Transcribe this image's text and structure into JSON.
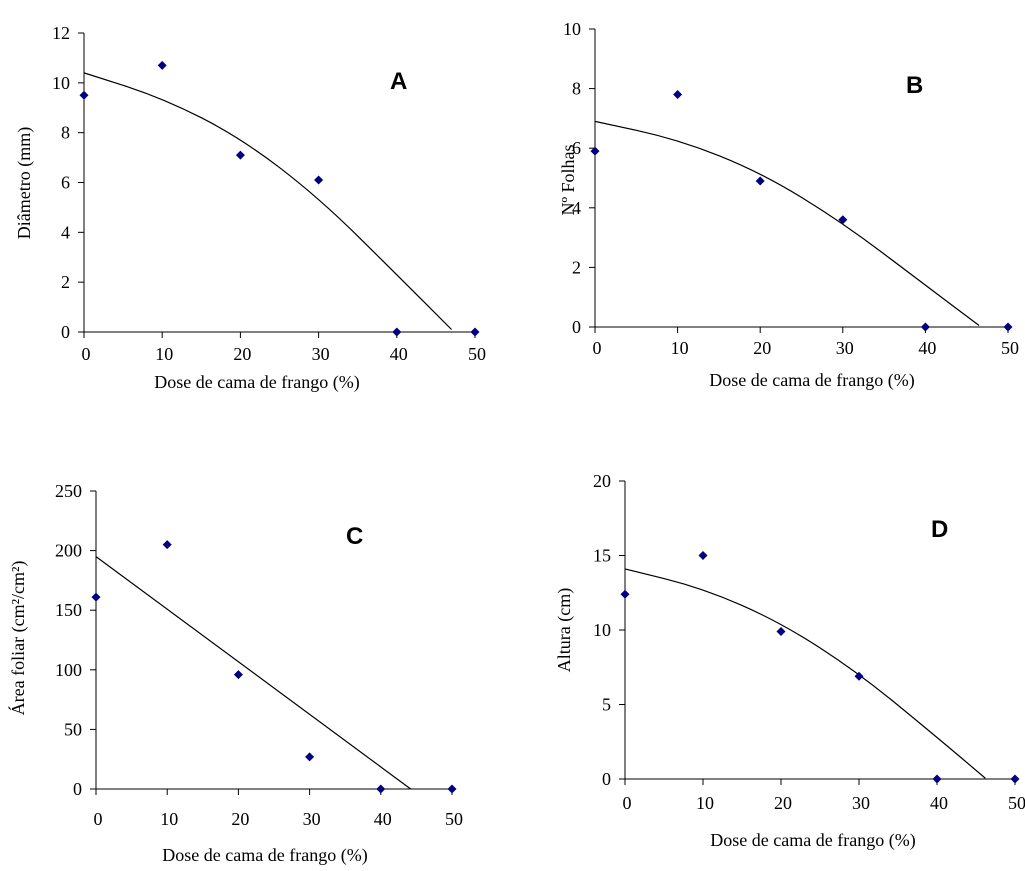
{
  "chart_data": [
    {
      "type": "scatter",
      "panel_letter": "A",
      "xlabel": "Dose de cama de frango (%)",
      "ylabel": "Diâmetro (mm)",
      "xlim": [
        0,
        50
      ],
      "ylim": [
        0,
        12
      ],
      "x_ticks": [
        0,
        10,
        20,
        30,
        40,
        50
      ],
      "y_ticks": [
        0,
        2,
        4,
        6,
        8,
        10,
        12
      ],
      "x": [
        0,
        10,
        20,
        30,
        40,
        50
      ],
      "y": [
        9.5,
        10.7,
        7.1,
        6.1,
        0,
        0
      ],
      "trendline": [
        [
          0,
          10.4
        ],
        [
          10,
          9.4
        ],
        [
          20,
          7.8
        ],
        [
          30,
          5.4
        ],
        [
          40,
          2.3
        ],
        [
          47,
          0.1
        ]
      ],
      "marker_color": "#000080",
      "grid": false
    },
    {
      "type": "scatter",
      "panel_letter": "B",
      "xlabel": "Dose de cama de frango (%)",
      "ylabel": "Nº Folhas",
      "xlim": [
        0,
        50
      ],
      "ylim": [
        0,
        10
      ],
      "x_ticks": [
        0,
        10,
        20,
        30,
        40,
        50
      ],
      "y_ticks": [
        0,
        2,
        4,
        6,
        8,
        10
      ],
      "x": [
        0,
        10,
        20,
        30,
        40,
        50
      ],
      "y": [
        5.9,
        7.8,
        4.9,
        3.6,
        0,
        0
      ],
      "trendline": [
        [
          0,
          6.9
        ],
        [
          10,
          6.3
        ],
        [
          20,
          5.2
        ],
        [
          30,
          3.5
        ],
        [
          40,
          1.4
        ],
        [
          46.5,
          0.05
        ]
      ],
      "marker_color": "#000080",
      "grid": false
    },
    {
      "type": "scatter",
      "panel_letter": "C",
      "xlabel": "Dose de cama de frango (%)",
      "ylabel": "Área foliar (cm²/cm²)",
      "xlim": [
        0,
        50
      ],
      "ylim": [
        0,
        250
      ],
      "x_ticks": [
        0,
        10,
        20,
        30,
        40,
        50
      ],
      "y_ticks": [
        0,
        50,
        100,
        150,
        200,
        250
      ],
      "x": [
        0,
        10,
        20,
        30,
        40,
        50
      ],
      "y": [
        161,
        205,
        96,
        27,
        0,
        0
      ],
      "trendline": [
        [
          0,
          195
        ],
        [
          44.2,
          0
        ]
      ],
      "marker_color": "#000080",
      "grid": false
    },
    {
      "type": "scatter",
      "panel_letter": "D",
      "xlabel": "Dose de cama de frango (%)",
      "ylabel": "Altura (cm)",
      "xlim": [
        0,
        50
      ],
      "ylim": [
        0,
        20
      ],
      "x_ticks": [
        0,
        10,
        20,
        30,
        40,
        50
      ],
      "y_ticks": [
        0,
        5,
        10,
        15,
        20
      ],
      "x": [
        0,
        10,
        20,
        30,
        40,
        50
      ],
      "y": [
        12.4,
        15.0,
        9.9,
        6.9,
        0,
        0
      ],
      "trendline": [
        [
          0,
          14.1
        ],
        [
          10,
          12.8
        ],
        [
          20,
          10.5
        ],
        [
          30,
          7.1
        ],
        [
          40,
          2.8
        ],
        [
          46.2,
          0.05
        ]
      ],
      "marker_color": "#000080",
      "grid": false
    }
  ]
}
